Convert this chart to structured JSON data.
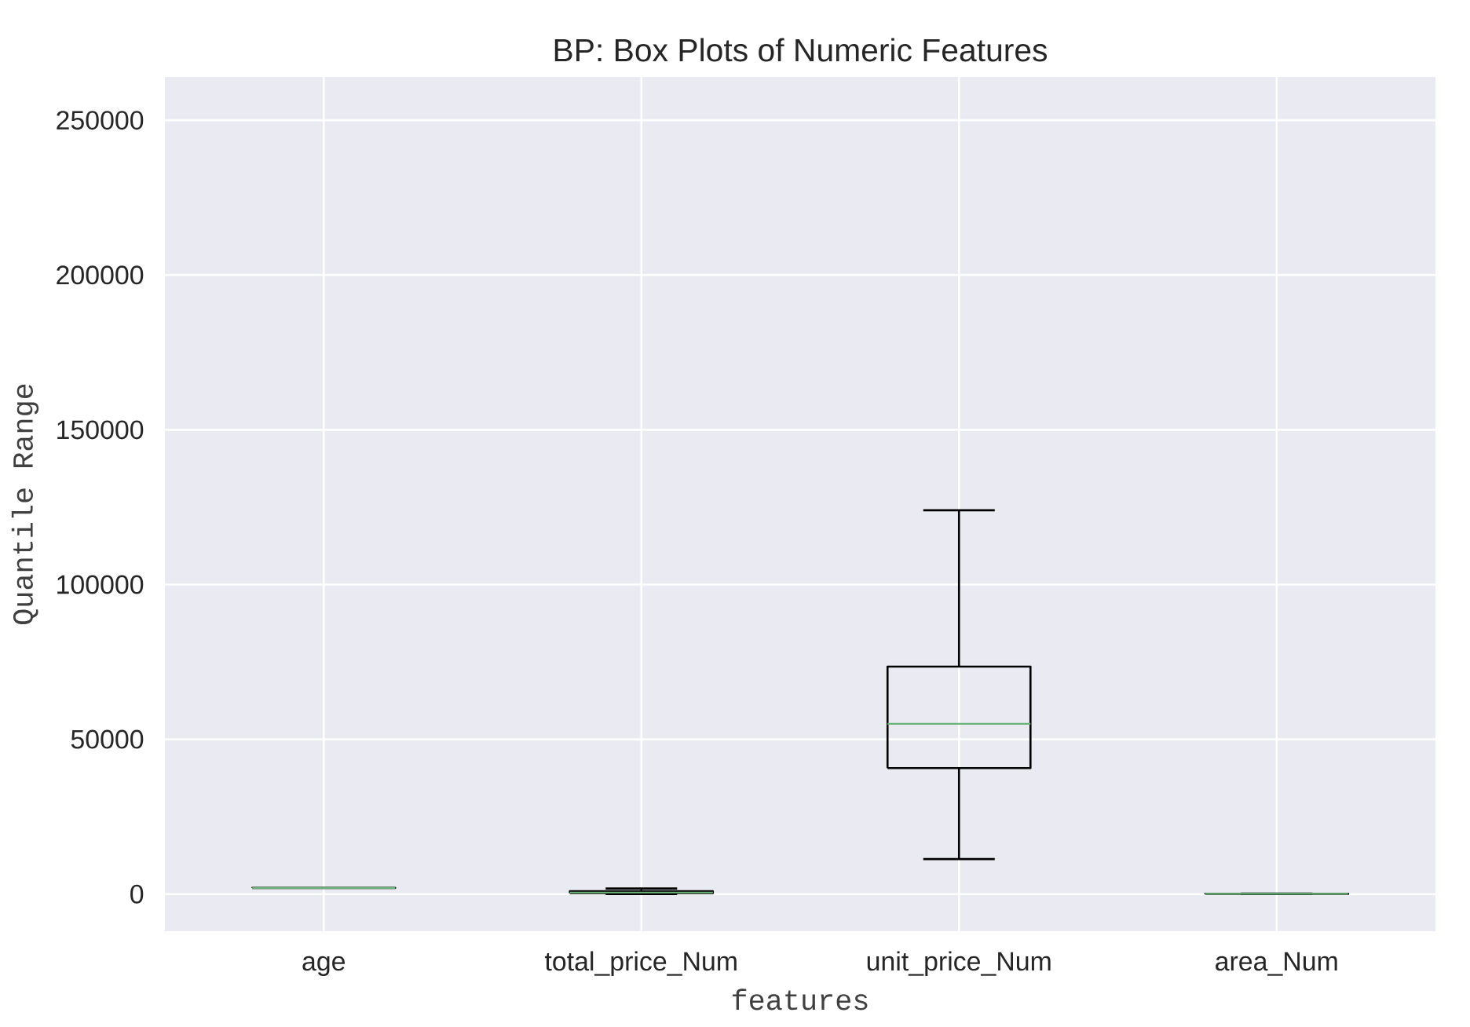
{
  "chart_data": {
    "type": "box",
    "title": "BP: Box Plots of Numeric Features",
    "xlabel": "features",
    "ylabel": "Quantile Range",
    "categories": [
      "age",
      "total_price_Num",
      "unit_price_Num",
      "area_Num"
    ],
    "boxes": [
      {
        "low": 1950,
        "q1": 1994,
        "median": 2004,
        "q3": 2011,
        "high": 2020
      },
      {
        "low": 0,
        "q1": 300,
        "median": 500,
        "q3": 900,
        "high": 1800
      },
      {
        "low": 11300,
        "q1": 40700,
        "median": 55000,
        "q3": 73500,
        "high": 124000
      },
      {
        "low": 20,
        "q1": 70,
        "median": 90,
        "q3": 120,
        "high": 190
      }
    ],
    "color": "#000000",
    "ylim": [
      -12000,
      264000
    ],
    "yticks": [
      0,
      50000,
      100000,
      150000,
      200000,
      250000
    ],
    "grid": true
  }
}
